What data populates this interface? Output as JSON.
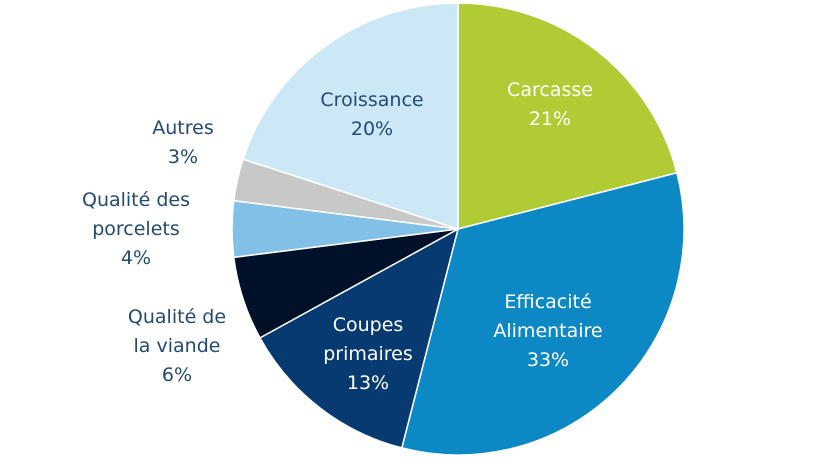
{
  "chart_data": {
    "type": "pie",
    "slices": [
      {
        "label_lines": [
          "Carcasse"
        ],
        "value": 21,
        "value_label": "21%",
        "color": "#b1cb35",
        "text_color": "#ffffff"
      },
      {
        "label_lines": [
          "Efficacité",
          "Alimentaire"
        ],
        "value": 33,
        "value_label": "33%",
        "color": "#0c89c4",
        "text_color": "#ffffff"
      },
      {
        "label_lines": [
          "Coupes",
          "primaires"
        ],
        "value": 13,
        "value_label": "13%",
        "color": "#063a70",
        "text_color": "#ffffff"
      },
      {
        "label_lines": [
          "Qualité de",
          "la viande"
        ],
        "value": 6,
        "value_label": "6%",
        "color": "#01112a",
        "text_color": "#234a74"
      },
      {
        "label_lines": [
          "Qualité des",
          "porcelets"
        ],
        "value": 4,
        "value_label": "4%",
        "color": "#83c0e7",
        "text_color": "#234a74"
      },
      {
        "label_lines": [
          "Autres"
        ],
        "value": 3,
        "value_label": "3%",
        "color": "#c8c8c8",
        "text_color": "#234a74"
      },
      {
        "label_lines": [
          "Croissance"
        ],
        "value": 20,
        "value_label": "20%",
        "color": "#cce8f6",
        "text_color": "#234a74"
      }
    ]
  }
}
